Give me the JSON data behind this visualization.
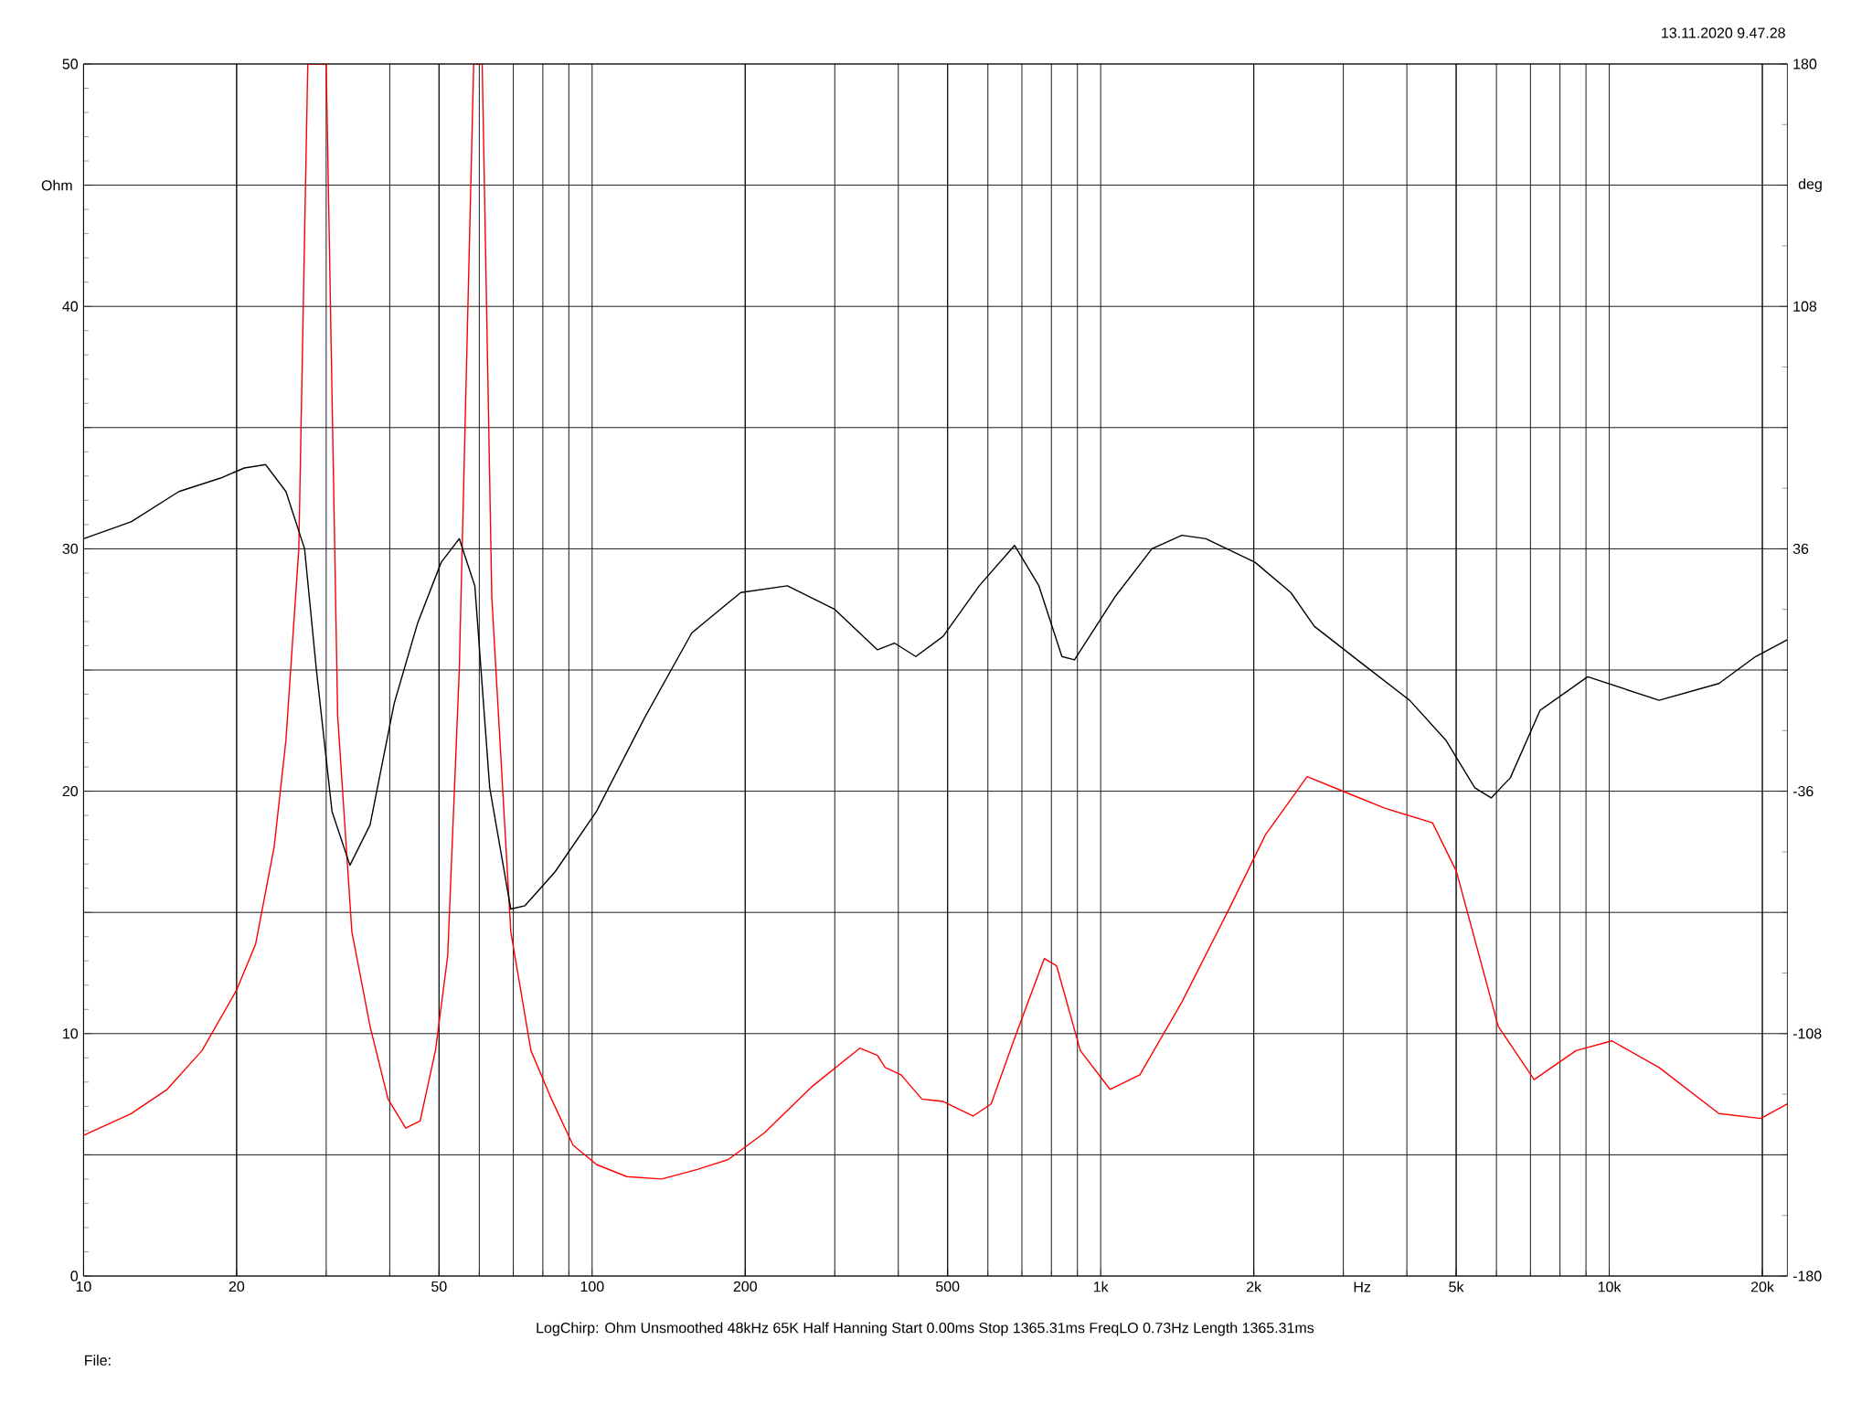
{
  "chart_data": {
    "type": "line",
    "log": "x",
    "grid": true,
    "marker": "none",
    "line_style": "solid",
    "xlabel": "Hz",
    "ylabel": "Ohm",
    "y2label": "deg",
    "annotations": [
      "13.11.2020 9.47.28",
      "LogChirp:  Ohm   Unsmoothed   48kHz   65K   Half Hanning   Start 0.00ms   Stop 1365.31ms   FreqLO 0.73Hz   Length 1365.31ms",
      "File:"
    ],
    "xlim": [
      10,
      22400
    ],
    "ylim": [
      0,
      50
    ],
    "y2lim": [
      -180,
      180
    ],
    "xticks": [
      10,
      20,
      50,
      100,
      200,
      500,
      {
        "value": 1000,
        "label": "1k"
      },
      {
        "value": 2000,
        "label": "2k"
      },
      {
        "value": 5000,
        "label": "5k"
      },
      {
        "value": 10000,
        "label": "10k"
      },
      {
        "value": 20000,
        "label": "20k"
      }
    ],
    "yticks": [
      0,
      {
        "value": 5,
        "label": null
      },
      10,
      {
        "value": 15,
        "label": null
      },
      20,
      {
        "value": 25,
        "label": null
      },
      30,
      {
        "value": 35,
        "label": null
      },
      40,
      {
        "value": 45,
        "label": null
      },
      50
    ],
    "y2ticks": [
      -180,
      -108,
      -36,
      36,
      108,
      180
    ],
    "series": [
      {
        "color": "#ff0000",
        "axis": "y",
        "x": [
          10,
          12.4,
          14.6,
          17.1,
          20,
          21.8,
          23.7,
          25,
          26.5,
          27.6,
          30,
          31.6,
          33.7,
          36.6,
          39.7,
          43,
          45.9,
          49.2,
          52,
          54.8,
          58.5,
          60.8,
          63.5,
          69.2,
          75.8,
          83.2,
          91.7,
          102,
          117,
          137,
          161,
          185,
          218,
          270,
          336,
          364,
          377,
          405,
          445,
          490,
          561,
          609,
          677,
          775,
          819,
          912,
          1043,
          1194,
          1444,
          1794,
          2108,
          2547,
          3076,
          3619,
          4492,
          5004,
          6050,
          7117,
          8603,
          10120,
          12530,
          16430,
          19860,
          22400
        ],
        "values": [
          5.8,
          6.7,
          7.7,
          9.3,
          11.8,
          13.7,
          17.7,
          22.1,
          30,
          50,
          50,
          23.1,
          14.2,
          10.3,
          7.3,
          6.1,
          6.4,
          9.3,
          13.2,
          25,
          50,
          50,
          28,
          14.2,
          9.3,
          7.3,
          5.4,
          4.6,
          4.1,
          4.0,
          4.4,
          4.8,
          5.9,
          7.8,
          9.4,
          9.1,
          8.6,
          8.3,
          7.3,
          7.2,
          6.6,
          7.1,
          9.8,
          13.1,
          12.8,
          9.3,
          7.7,
          8.3,
          11.3,
          15.2,
          18.2,
          20.6,
          19.9,
          19.3,
          18.7,
          16.7,
          10.3,
          8.1,
          9.3,
          9.7,
          8.6,
          6.7,
          6.5,
          7.1
        ]
      },
      {
        "color": "#000000",
        "axis": "y2",
        "x": [
          10,
          12.4,
          15.4,
          18.6,
          20.7,
          22.8,
          25,
          27.2,
          28.7,
          30.8,
          33.4,
          36.6,
          40.8,
          45.4,
          50.5,
          54.8,
          58.8,
          62.9,
          69.2,
          73.8,
          84.5,
          102,
          127,
          157,
          196,
          242,
          300,
          364,
          393,
          433,
          490,
          577,
          677,
          756,
          839,
          888,
          1070,
          1261,
          1444,
          1610,
          2011,
          2365,
          2630,
          3260,
          4050,
          4780,
          5440,
          5860,
          6390,
          7310,
          9070,
          12530,
          16430,
          19400,
          22400
        ],
        "values": [
          39,
          44,
          53,
          57,
          60,
          61,
          53,
          36,
          0,
          -42,
          -58,
          -46,
          -10,
          14,
          32,
          39,
          25,
          -35,
          -71,
          -70,
          -60,
          -42,
          -14,
          11,
          23,
          25,
          18,
          6,
          8,
          4,
          10,
          25,
          37,
          25,
          4,
          3,
          22,
          36,
          40,
          39,
          32,
          23,
          13,
          2,
          -9,
          -21,
          -35,
          -38,
          -32,
          -12,
          -2,
          -9,
          -4,
          4,
          9
        ]
      }
    ]
  }
}
